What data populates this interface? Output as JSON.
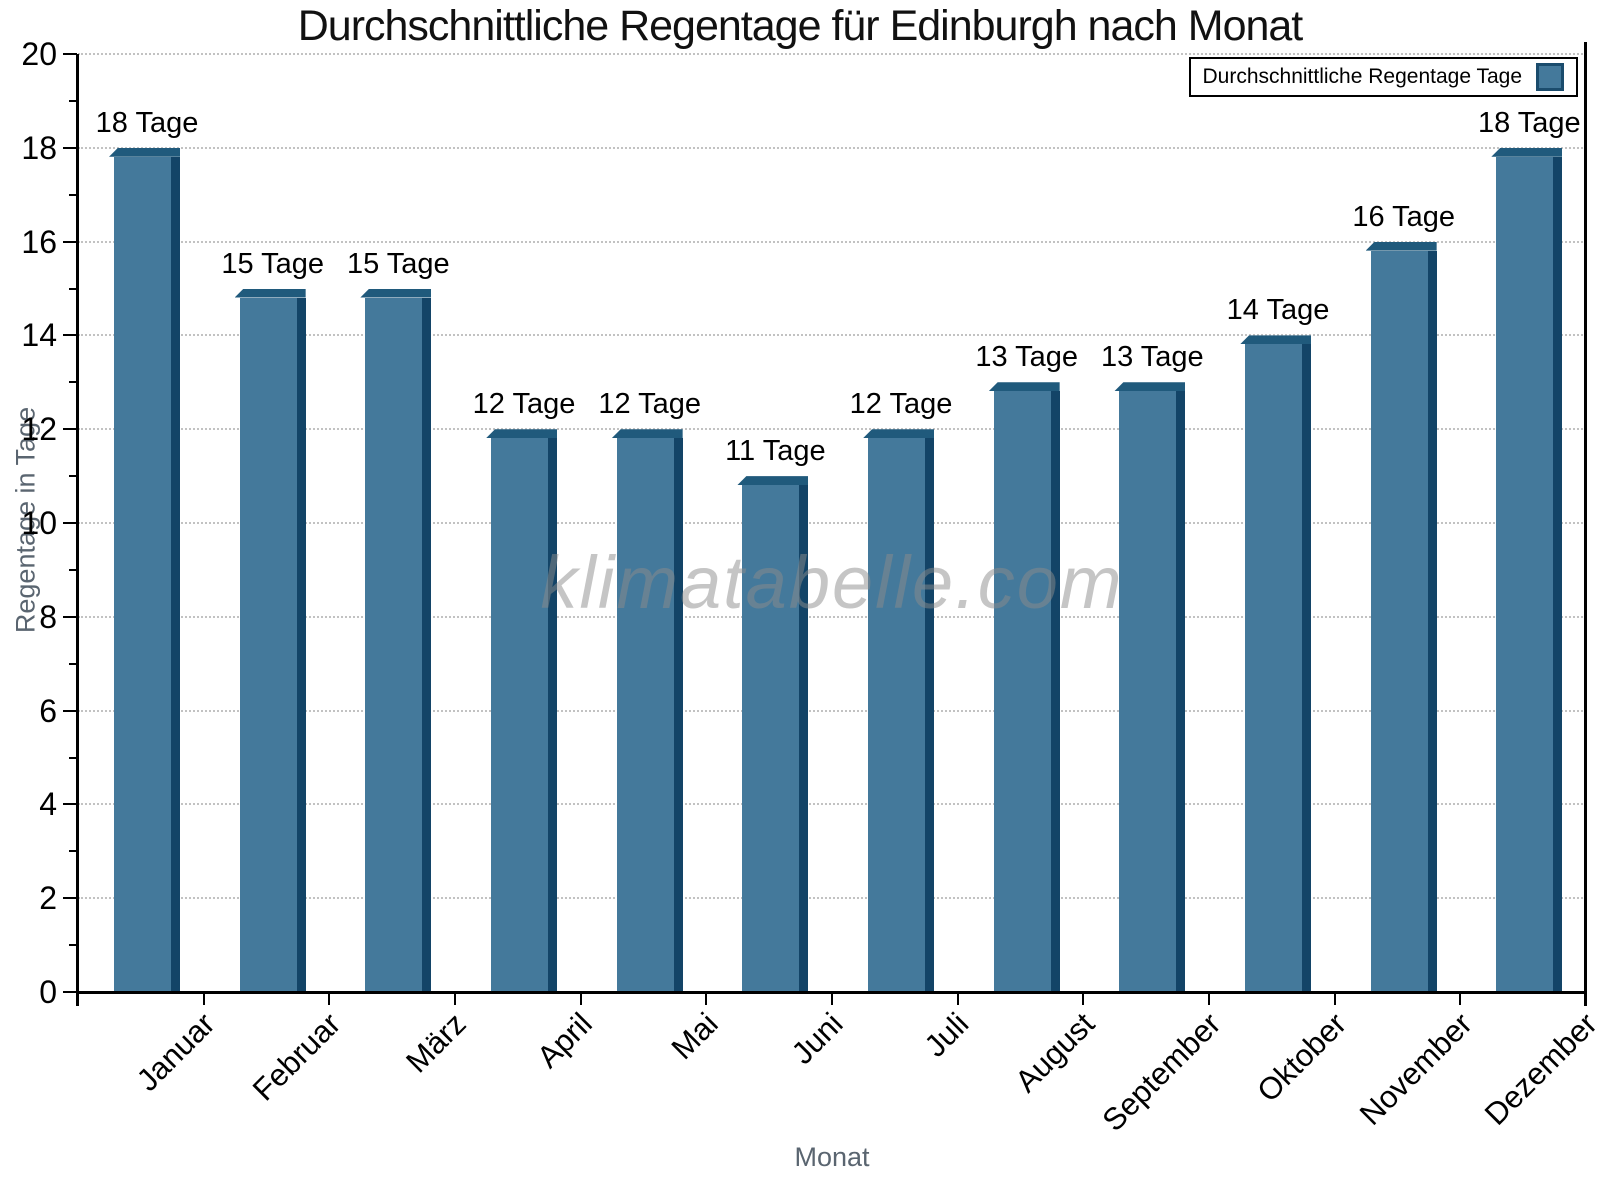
{
  "watermark": "klimatabelle.com",
  "chart_data": {
    "type": "bar",
    "title": "Durchschnittliche Regentage für Edinburgh nach Monat",
    "xlabel": "Monat",
    "ylabel": "Regentage in Tage",
    "legend": "Durchschnittliche Regentage Tage",
    "legend_position": "top-right",
    "watermark": "klimatabelle.com",
    "categories": [
      "Januar",
      "Februar",
      "März",
      "April",
      "Mai",
      "Juni",
      "Juli",
      "August",
      "September",
      "Oktober",
      "November",
      "Dezember"
    ],
    "values": [
      18,
      15,
      15,
      12,
      12,
      11,
      12,
      13,
      13,
      14,
      16,
      18
    ],
    "value_label_suffix": " Tage",
    "value_labels": [
      "18 Tage",
      "15 Tage",
      "15 Tage",
      "12 Tage",
      "12 Tage",
      "11 Tage",
      "12 Tage",
      "13 Tage",
      "13 Tage",
      "14 Tage",
      "16 Tage",
      "18 Tage"
    ],
    "ylim": [
      0,
      20
    ],
    "yticks": [
      0,
      2,
      4,
      6,
      8,
      10,
      12,
      14,
      16,
      18,
      20
    ],
    "grid": "horizontal-dotted-on-major-ticks",
    "colors": {
      "bar_fill": "#44799B",
      "bar_side": "#134467",
      "bar_cap": "#205A7C",
      "grid": "#C2C2C2",
      "axis": "#000000",
      "axis_title": "#5A6570",
      "tick_label": "#000000",
      "watermark": "#8C8C8C"
    }
  }
}
